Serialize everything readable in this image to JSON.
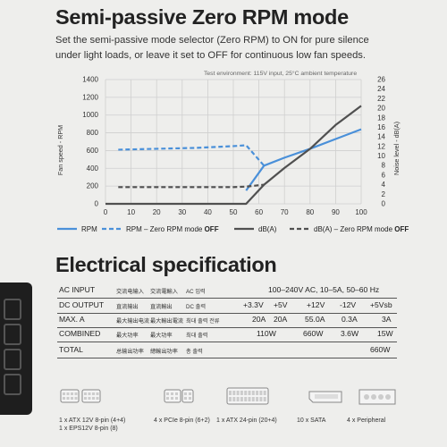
{
  "header": {
    "title": "Semi-passive Zero RPM mode",
    "description": "Set the semi-passive mode selector (Zero RPM) to ON for pure silence under light loads, or leave it set to OFF for continuous low fan speeds."
  },
  "chart_data": {
    "type": "line",
    "note": "Test environment: 115V input, 25°C ambient temperature",
    "xlabel": "",
    "ylabel": "Fan speed - RPM",
    "y2label": "Noise level - dB(A)",
    "xlim": [
      0,
      100
    ],
    "ylim": [
      0,
      1400
    ],
    "y2lim": [
      0,
      26
    ],
    "x_ticks": [
      "0",
      "10",
      "20",
      "30",
      "40",
      "50",
      "60",
      "70",
      "80",
      "90",
      "100"
    ],
    "y_ticks": [
      "0",
      "200",
      "400",
      "600",
      "800",
      "1000",
      "1200",
      "1400"
    ],
    "y2_ticks": [
      "0",
      "2",
      "4",
      "6",
      "8",
      "10",
      "12",
      "14",
      "16",
      "18",
      "20",
      "22",
      "24",
      "26"
    ],
    "grid": true,
    "legend_position": "bottom",
    "colors": {
      "rpm": "#4a90d9",
      "dba": "#505050"
    },
    "series": [
      {
        "name": "RPM",
        "axis": "left",
        "style": "solid",
        "color": "#4a90d9",
        "x": [
          55,
          62,
          70,
          80,
          90,
          100
        ],
        "y": [
          150,
          430,
          520,
          620,
          730,
          840
        ]
      },
      {
        "name": "RPM – Zero RPM mode OFF",
        "axis": "left",
        "style": "dashed",
        "color": "#4a90d9",
        "x": [
          5,
          20,
          35,
          50,
          55,
          62
        ],
        "y": [
          610,
          620,
          630,
          650,
          660,
          430
        ]
      },
      {
        "name": "dB(A)",
        "axis": "right",
        "style": "solid",
        "color": "#505050",
        "x": [
          0,
          55,
          62,
          70,
          80,
          90,
          100
        ],
        "y": [
          0,
          0,
          4,
          7.5,
          11.5,
          16.5,
          20.5
        ]
      },
      {
        "name": "dB(A) – Zero RPM mode OFF",
        "axis": "right",
        "style": "dashed",
        "color": "#505050",
        "x": [
          5,
          20,
          35,
          50,
          55,
          62
        ],
        "y": [
          3.5,
          3.5,
          3.5,
          3.5,
          3.6,
          4
        ]
      }
    ],
    "legend": [
      {
        "label": "RPM",
        "color": "#4a90d9",
        "style": "solid"
      },
      {
        "label": "RPM – Zero RPM mode ",
        "bold": "OFF",
        "color": "#4a90d9",
        "style": "dashed"
      },
      {
        "label": "dB(A)",
        "color": "#505050",
        "style": "solid"
      },
      {
        "label": "dB(A) – Zero RPM mode ",
        "bold": "OFF",
        "color": "#505050",
        "style": "dashed"
      }
    ]
  },
  "elec": {
    "title": "Electrical specification",
    "rows": [
      {
        "label": "AC INPUT",
        "cjk1": "交流电输入",
        "cjk2": "交流電輸入",
        "kor": "AC 입력",
        "values": [
          "100–240V AC, 10–5A, 50–60 Hz"
        ]
      },
      {
        "label": "DC OUTPUT",
        "cjk1": "直流输出",
        "cjk2": "直流輸出",
        "kor": "DC 출력",
        "values": [
          "+3.3V",
          "+5V",
          "+12V",
          "-12V",
          "+5Vsb"
        ]
      },
      {
        "label": "MAX. A",
        "cjk1": "最大输出电流",
        "cjk2": "最大輸出電流",
        "kor": "최대 출력 전류",
        "values": [
          "20A",
          "20A",
          "55.0A",
          "0.3A",
          "3A"
        ]
      },
      {
        "label": "COMBINED",
        "cjk1": "最大功率",
        "cjk2": "最大功率",
        "kor": "최대 출력",
        "values": [
          "110W",
          "660W",
          "3.6W",
          "15W"
        ]
      },
      {
        "label": "TOTAL",
        "cjk1": "总输出功率",
        "cjk2": "總輸出功率",
        "kor": "총 출력",
        "values": [
          "660W"
        ]
      }
    ]
  },
  "connectors": [
    {
      "label": "1 x ATX 12V 8-pin (4+4)\n1 x EPS12V 8-pin (8)",
      "icon": "atx-12v-connector-icon"
    },
    {
      "label": "4 x PCIe 8-pin (6+2)",
      "icon": "pcie-connector-icon"
    },
    {
      "label": "1 x ATX 24-pin (20+4)",
      "icon": "atx-24pin-connector-icon"
    },
    {
      "label": "10 x SATA",
      "icon": "sata-connector-icon"
    },
    {
      "label": "4 x Peripheral",
      "icon": "molex-connector-icon"
    }
  ]
}
